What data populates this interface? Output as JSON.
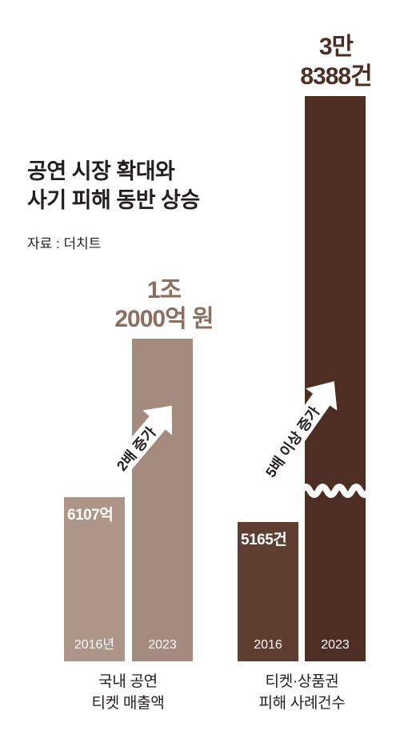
{
  "title": {
    "line1": "공연 시장 확대와",
    "line2": "사기 피해 동반 상승"
  },
  "source": "자료 : 더치트",
  "chart_data": [
    {
      "type": "bar",
      "category_label": [
        "국내 공연",
        "티켓 매출액"
      ],
      "categories": [
        "2016년",
        "2023"
      ],
      "values": [
        6107,
        12000
      ],
      "unit": "억 원",
      "value_labels": [
        [
          "6107억"
        ],
        [
          "1조",
          "2000억 원"
        ]
      ],
      "annotation": "2배 증가",
      "colors": [
        "#ad9688",
        "#a48b7d"
      ],
      "ylim": [
        0,
        12000
      ]
    },
    {
      "type": "bar",
      "category_label": [
        "티켓·상품권",
        "피해 사례건수"
      ],
      "categories": [
        "2016",
        "2023"
      ],
      "values": [
        5165,
        38388
      ],
      "unit": "건",
      "value_labels": [
        [
          "5165건"
        ],
        [
          "3만",
          "8388건"
        ]
      ],
      "annotation": "5배 이상 증가",
      "axis_break": true,
      "colors": [
        "#5f3d31",
        "#4e2e22"
      ]
    }
  ]
}
